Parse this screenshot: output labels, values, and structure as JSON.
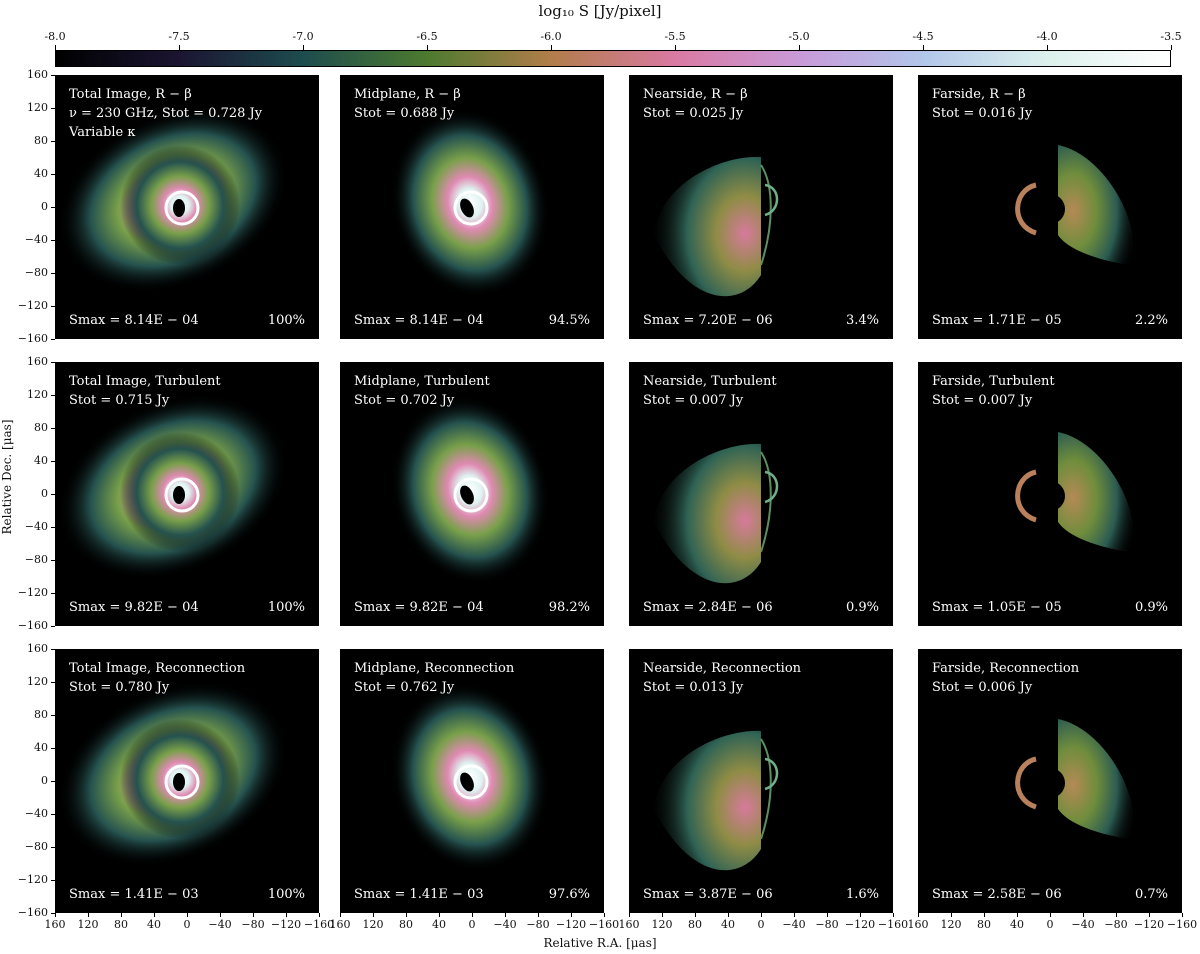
{
  "colorbar": {
    "title": "log₁₀ S [Jy/pixel]",
    "ticks": [
      "-8.0",
      "-7.5",
      "-7.0",
      "-6.5",
      "-6.0",
      "-5.5",
      "-5.0",
      "-4.5",
      "-4.0",
      "-3.5"
    ],
    "stops": [
      "#000000",
      "#1b1532",
      "#1d4c4e",
      "#4d7a2f",
      "#b17d4a",
      "#d97aa3",
      "#c89ad8",
      "#b2c6ea",
      "#dcf1ec",
      "#ffffff"
    ]
  },
  "axes": {
    "xlabel": "Relative R.A. [μas]",
    "ylabel": "Relative Dec. [μas]",
    "xticks": [
      "160",
      "120",
      "80",
      "40",
      "0",
      "−40",
      "−80",
      "−120",
      "−160"
    ],
    "yticks": [
      "160",
      "120",
      "80",
      "40",
      "0",
      "−40",
      "−80",
      "−120",
      "−160"
    ]
  },
  "panels": [
    {
      "lines": [
        "Total Image, R − β",
        "ν = 230 GHz, Stot = 0.728 Jy",
        "Variable κ"
      ],
      "smax": "Smax = 8.14E − 04",
      "pct": "100%",
      "kind": "total",
      "row": 0,
      "col": 0
    },
    {
      "lines": [
        "Midplane, R − β",
        "Stot = 0.688 Jy"
      ],
      "smax": "Smax = 8.14E − 04",
      "pct": "94.5%",
      "kind": "mid",
      "row": 0,
      "col": 1
    },
    {
      "lines": [
        "Nearside, R − β",
        "Stot = 0.025 Jy"
      ],
      "smax": "Smax = 7.20E − 06",
      "pct": "3.4%",
      "kind": "near",
      "row": 0,
      "col": 2
    },
    {
      "lines": [
        "Farside, R − β",
        "Stot = 0.016 Jy"
      ],
      "smax": "Smax = 1.71E − 05",
      "pct": "2.2%",
      "kind": "far",
      "row": 0,
      "col": 3
    },
    {
      "lines": [
        "Total Image, Turbulent",
        "Stot = 0.715 Jy"
      ],
      "smax": "Smax = 9.82E − 04",
      "pct": "100%",
      "kind": "total",
      "row": 1,
      "col": 0
    },
    {
      "lines": [
        "Midplane, Turbulent",
        "Stot = 0.702 Jy"
      ],
      "smax": "Smax = 9.82E − 04",
      "pct": "98.2%",
      "kind": "mid",
      "row": 1,
      "col": 1
    },
    {
      "lines": [
        "Nearside, Turbulent",
        "Stot = 0.007 Jy"
      ],
      "smax": "Smax = 2.84E − 06",
      "pct": "0.9%",
      "kind": "near",
      "row": 1,
      "col": 2
    },
    {
      "lines": [
        "Farside, Turbulent",
        "Stot = 0.007 Jy"
      ],
      "smax": "Smax = 1.05E − 05",
      "pct": "0.9%",
      "kind": "far",
      "row": 1,
      "col": 3
    },
    {
      "lines": [
        "Total Image, Reconnection",
        "Stot = 0.780 Jy"
      ],
      "smax": "Smax = 1.41E − 03",
      "pct": "100%",
      "kind": "total",
      "row": 2,
      "col": 0
    },
    {
      "lines": [
        "Midplane, Reconnection",
        "Stot = 0.762 Jy"
      ],
      "smax": "Smax = 1.41E − 03",
      "pct": "97.6%",
      "kind": "mid",
      "row": 2,
      "col": 1
    },
    {
      "lines": [
        "Nearside, Reconnection",
        "Stot = 0.013 Jy"
      ],
      "smax": "Smax = 3.87E − 06",
      "pct": "1.6%",
      "kind": "near",
      "row": 2,
      "col": 2
    },
    {
      "lines": [
        "Farside, Reconnection",
        "Stot = 0.006 Jy"
      ],
      "smax": "Smax = 2.58E − 06",
      "pct": "0.7%",
      "kind": "far",
      "row": 2,
      "col": 3
    }
  ]
}
